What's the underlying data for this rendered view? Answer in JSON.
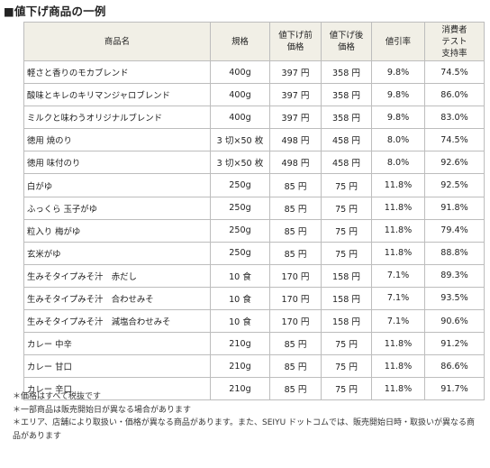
{
  "title": "■値下げ商品の一例",
  "table": {
    "headers": {
      "name": "商品名",
      "spec": "規格",
      "before_l1": "値下げ前",
      "before_l2": "価格",
      "after_l1": "値下げ後",
      "after_l2": "価格",
      "rate": "値引率",
      "support_l1": "消費者",
      "support_l2": "テスト",
      "support_l3": "支持率"
    },
    "rows": [
      {
        "name": "軽さと香りのモカブレンド",
        "spec": "400g",
        "before": "397 円",
        "after": "358 円",
        "rate": "9.8%",
        "support": "74.5%"
      },
      {
        "name": "酸味とキレのキリマンジャロブレンド",
        "spec": "400g",
        "before": "397 円",
        "after": "358 円",
        "rate": "9.8%",
        "support": "86.0%"
      },
      {
        "name": "ミルクと味わうオリジナルブレンド",
        "spec": "400g",
        "before": "397 円",
        "after": "358 円",
        "rate": "9.8%",
        "support": "83.0%"
      },
      {
        "name": "徳用 焼のり",
        "spec": "3 切×50 枚",
        "before": "498 円",
        "after": "458 円",
        "rate": "8.0%",
        "support": "74.5%"
      },
      {
        "name": "徳用 味付のり",
        "spec": "3 切×50 枚",
        "before": "498 円",
        "after": "458 円",
        "rate": "8.0%",
        "support": "92.6%"
      },
      {
        "name": "白がゆ",
        "spec": "250g",
        "before": "85 円",
        "after": "75 円",
        "rate": "11.8%",
        "support": "92.5%"
      },
      {
        "name": "ふっくら 玉子がゆ",
        "spec": "250g",
        "before": "85 円",
        "after": "75 円",
        "rate": "11.8%",
        "support": "91.8%"
      },
      {
        "name": "粒入り 梅がゆ",
        "spec": "250g",
        "before": "85 円",
        "after": "75 円",
        "rate": "11.8%",
        "support": "79.4%"
      },
      {
        "name": "玄米がゆ",
        "spec": "250g",
        "before": "85 円",
        "after": "75 円",
        "rate": "11.8%",
        "support": "88.8%"
      },
      {
        "name": "生みそタイプみそ汁　赤だし",
        "spec": "10 食",
        "before": "170 円",
        "after": "158 円",
        "rate": "7.1%",
        "support": "89.3%"
      },
      {
        "name": "生みそタイプみそ汁　合わせみそ",
        "spec": "10 食",
        "before": "170 円",
        "after": "158 円",
        "rate": "7.1%",
        "support": "93.5%"
      },
      {
        "name": "生みそタイプみそ汁　減塩合わせみそ",
        "spec": "10 食",
        "before": "170 円",
        "after": "158 円",
        "rate": "7.1%",
        "support": "90.6%"
      },
      {
        "name": "カレー 中辛",
        "spec": "210g",
        "before": "85 円",
        "after": "75 円",
        "rate": "11.8%",
        "support": "91.2%"
      },
      {
        "name": "カレー 甘口",
        "spec": "210g",
        "before": "85 円",
        "after": "75 円",
        "rate": "11.8%",
        "support": "86.6%"
      },
      {
        "name": "カレー 辛口",
        "spec": "210g",
        "before": "85 円",
        "after": "75 円",
        "rate": "11.8%",
        "support": "91.7%"
      }
    ]
  },
  "notes": [
    "＊価格はすべて税抜です",
    "＊一部商品は販売開始日が異なる場合があります",
    "＊エリア、店舗により取扱い・価格が異なる商品があります。また、SEIYU ドットコムでは、販売開始日時・取扱いが異なる商品があります"
  ]
}
